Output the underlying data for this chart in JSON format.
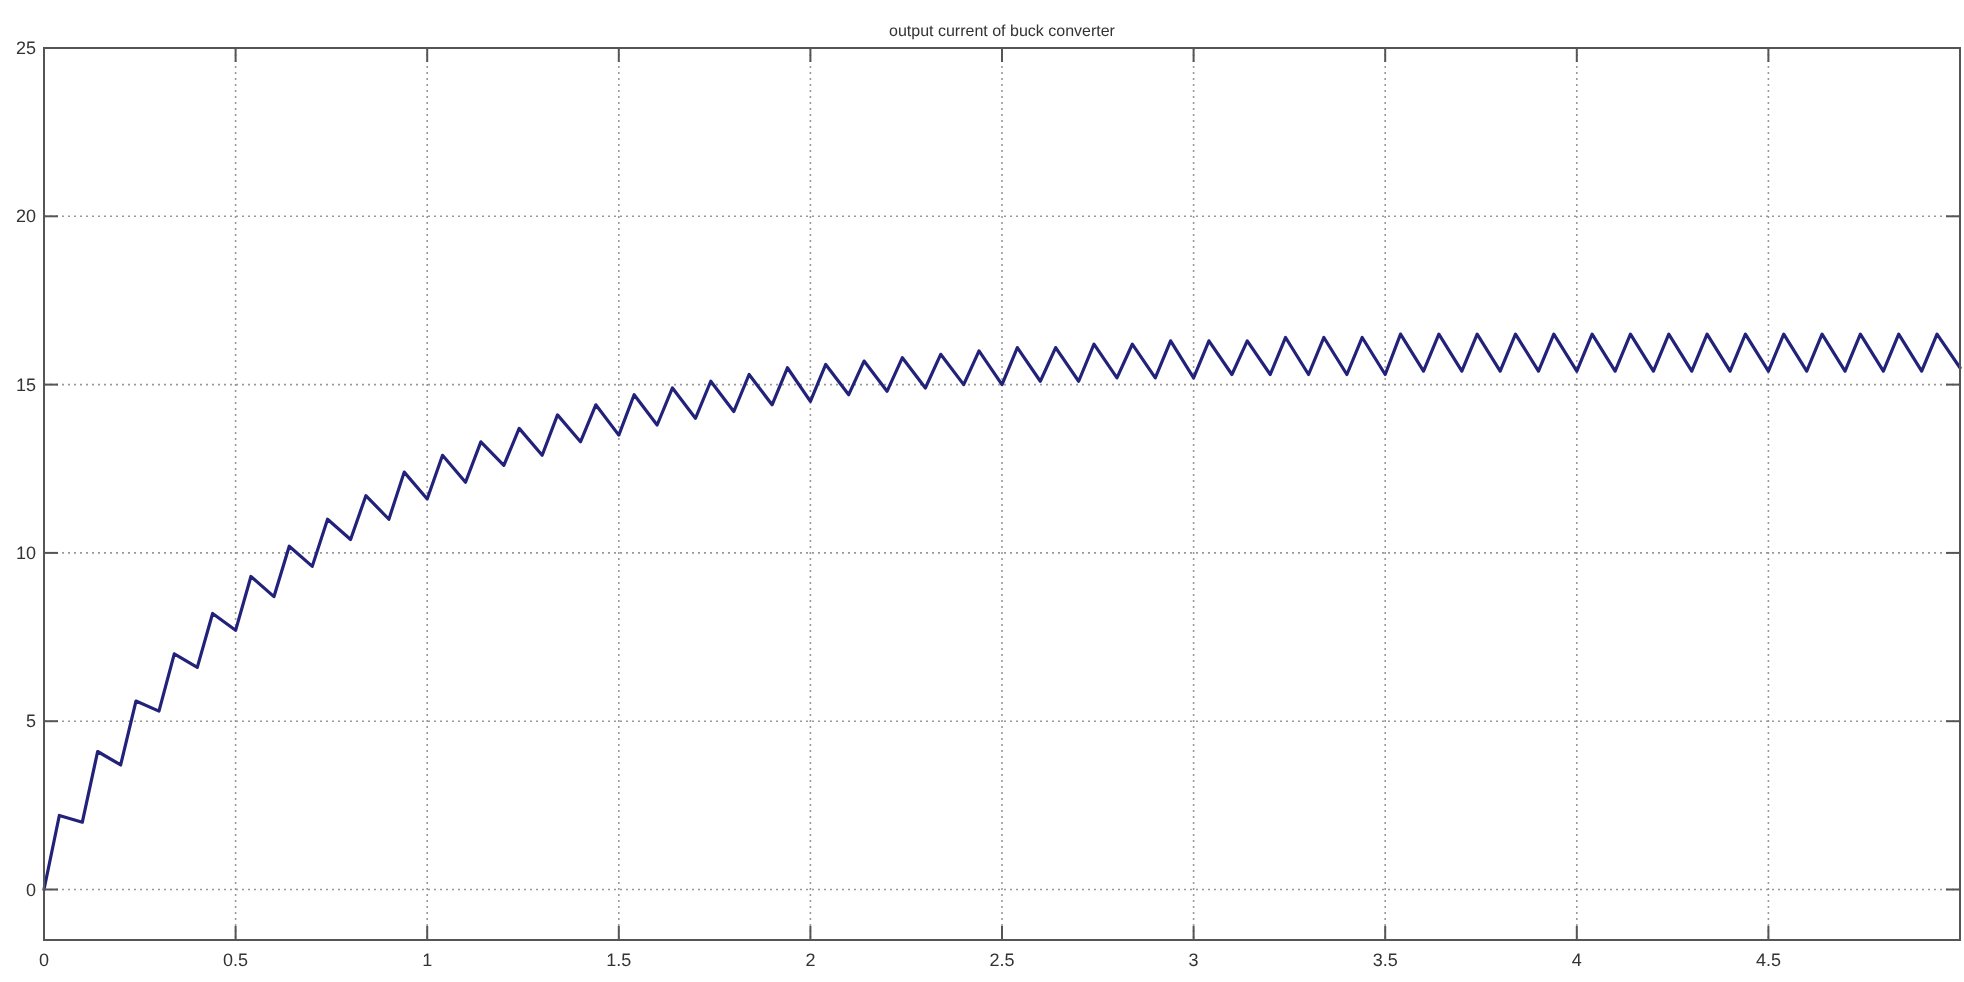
{
  "chart_data": {
    "type": "line",
    "title": "output current of buck converter",
    "xlim": [
      0,
      5
    ],
    "ylim": [
      -1.5,
      25
    ],
    "xticks": [
      0,
      0.5,
      1,
      1.5,
      2,
      2.5,
      3,
      3.5,
      4,
      4.5
    ],
    "yticks": [
      0,
      5,
      10,
      15,
      20,
      25
    ],
    "grid": true,
    "line_style": "solid",
    "series": [
      {
        "color": "#22227a",
        "x": [
          0,
          0.04,
          0.1,
          0.14,
          0.2,
          0.24,
          0.3,
          0.34,
          0.4,
          0.44,
          0.5,
          0.54,
          0.6,
          0.64,
          0.7,
          0.74,
          0.8,
          0.84,
          0.9,
          0.94,
          1.0,
          1.04,
          1.1,
          1.14,
          1.2,
          1.24,
          1.3,
          1.34,
          1.4,
          1.44,
          1.5,
          1.54,
          1.6,
          1.64,
          1.7,
          1.74,
          1.8,
          1.84,
          1.9,
          1.94,
          2.0,
          2.04,
          2.1,
          2.14,
          2.2,
          2.24,
          2.3,
          2.34,
          2.4,
          2.44,
          2.5,
          2.54,
          2.6,
          2.64,
          2.7,
          2.74,
          2.8,
          2.84,
          2.9,
          2.94,
          3.0,
          3.04,
          3.1,
          3.14,
          3.2,
          3.24,
          3.3,
          3.34,
          3.4,
          3.44,
          3.5,
          3.54,
          3.6,
          3.64,
          3.7,
          3.74,
          3.8,
          3.84,
          3.9,
          3.94,
          4.0,
          4.04,
          4.1,
          4.14,
          4.2,
          4.24,
          4.3,
          4.34,
          4.4,
          4.44,
          4.5,
          4.54,
          4.6,
          4.64,
          4.7,
          4.74,
          4.8,
          4.84,
          4.9,
          4.94,
          5.0
        ],
        "values": [
          0,
          2.2,
          2.0,
          4.1,
          3.7,
          5.6,
          5.3,
          7.0,
          6.6,
          8.2,
          7.7,
          9.3,
          8.7,
          10.2,
          9.6,
          11.0,
          10.4,
          11.7,
          11.0,
          12.4,
          11.6,
          12.9,
          12.1,
          13.3,
          12.6,
          13.7,
          12.9,
          14.1,
          13.3,
          14.4,
          13.5,
          14.7,
          13.8,
          14.9,
          14.0,
          15.1,
          14.2,
          15.3,
          14.4,
          15.5,
          14.5,
          15.6,
          14.7,
          15.7,
          14.8,
          15.8,
          14.9,
          15.9,
          15.0,
          16.0,
          15.0,
          16.1,
          15.1,
          16.1,
          15.1,
          16.2,
          15.2,
          16.2,
          15.2,
          16.3,
          15.2,
          16.3,
          15.3,
          16.3,
          15.3,
          16.4,
          15.3,
          16.4,
          15.3,
          16.4,
          15.3,
          16.5,
          15.4,
          16.5,
          15.4,
          16.5,
          15.4,
          16.5,
          15.4,
          16.5,
          15.4,
          16.5,
          15.4,
          16.5,
          15.4,
          16.5,
          15.4,
          16.5,
          15.4,
          16.5,
          15.4,
          16.5,
          15.4,
          16.5,
          15.4,
          16.5,
          15.4,
          16.5,
          15.4,
          16.5,
          15.5
        ]
      }
    ]
  }
}
